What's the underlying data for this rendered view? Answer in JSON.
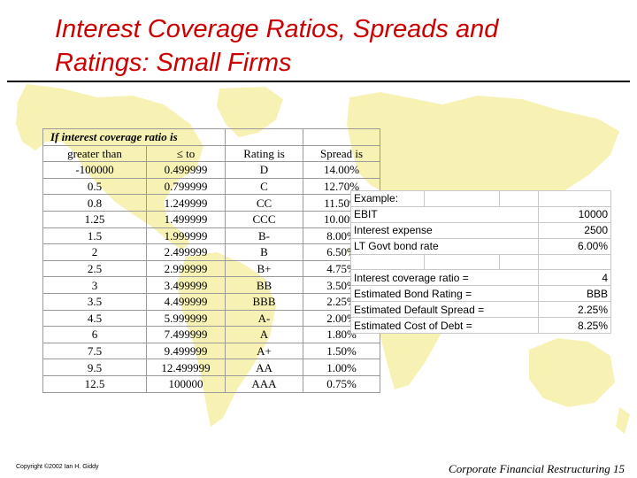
{
  "slide": {
    "title_line1": "Interest Coverage Ratios, Spreads and",
    "title_line2": "Ratings: Small Firms"
  },
  "ratings_table": {
    "header_top": "If interest coverage ratio is",
    "columns": [
      "greater than",
      "≤ to",
      "Rating is",
      "Spread is"
    ],
    "rows": [
      [
        "-100000",
        "0.499999",
        "D",
        "14.00%"
      ],
      [
        "0.5",
        "0.799999",
        "C",
        "12.70%"
      ],
      [
        "0.8",
        "1.249999",
        "CC",
        "11.50%"
      ],
      [
        "1.25",
        "1.499999",
        "CCC",
        "10.00%"
      ],
      [
        "1.5",
        "1.999999",
        "B-",
        "8.00%"
      ],
      [
        "2",
        "2.499999",
        "B",
        "6.50%"
      ],
      [
        "2.5",
        "2.999999",
        "B+",
        "4.75%"
      ],
      [
        "3",
        "3.499999",
        "BB",
        "3.50%"
      ],
      [
        "3.5",
        "4.499999",
        "BBB",
        "2.25%"
      ],
      [
        "4.5",
        "5.999999",
        "A-",
        "2.00%"
      ],
      [
        "6",
        "7.499999",
        "A",
        "1.80%"
      ],
      [
        "7.5",
        "9.499999",
        "A+",
        "1.50%"
      ],
      [
        "9.5",
        "12.499999",
        "AA",
        "1.00%"
      ],
      [
        "12.5",
        "100000",
        "AAA",
        "0.75%"
      ]
    ]
  },
  "example": {
    "heading": "Example:",
    "inputs": [
      {
        "label": "EBIT",
        "value": "10000"
      },
      {
        "label": "Interest expense",
        "value": "2500"
      },
      {
        "label": "LT Govt bond rate",
        "value": "6.00%"
      }
    ],
    "results": [
      {
        "label": "Interest  coverage ratio =",
        "value": "4"
      },
      {
        "label": "Estimated Bond Rating =",
        "value": "BBB"
      },
      {
        "label": "Estimated Default Spread =",
        "value": "2.25%"
      },
      {
        "label": "Estimated Cost of Debt =",
        "value": "8.25%"
      }
    ]
  },
  "footer": {
    "copyright": "Copyright ©2002 Ian H. Giddy",
    "course": "Corporate Financial Restructuring 15"
  },
  "colors": {
    "title": "#cc0000",
    "map": "#f7f2b4"
  }
}
